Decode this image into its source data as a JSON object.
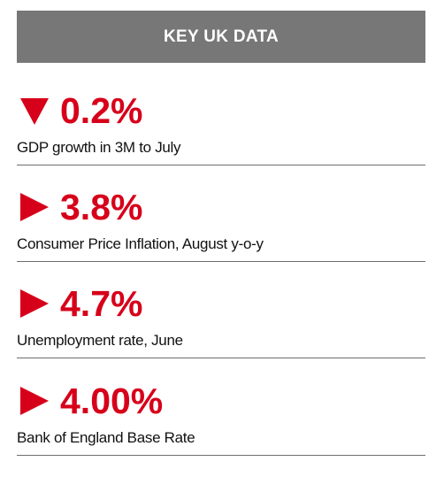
{
  "header": {
    "title": "KEY UK DATA"
  },
  "colors": {
    "header_bg": "#777777",
    "accent_red": "#d7001a",
    "divider": "#6e6e6e"
  },
  "stats": [
    {
      "direction": "down",
      "icon": "triangle-down-icon",
      "value": "0.2%",
      "label": "GDP growth in 3M to July"
    },
    {
      "direction": "right",
      "icon": "triangle-right-icon",
      "value": "3.8%",
      "label": "Consumer Price Inflation, August y-o-y"
    },
    {
      "direction": "right",
      "icon": "triangle-right-icon",
      "value": "4.7%",
      "label": "Unemployment rate, June"
    },
    {
      "direction": "right",
      "icon": "triangle-right-icon",
      "value": "4.00%",
      "label": "Bank of England Base Rate"
    }
  ]
}
